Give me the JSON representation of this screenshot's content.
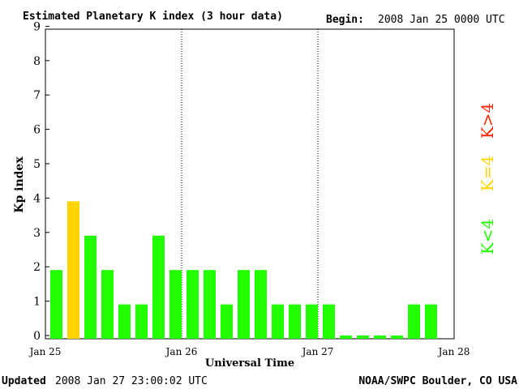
{
  "header": {
    "title": "Estimated Planetary K index (3 hour data)",
    "begin_label": "Begin:",
    "begin_value": "2008 Jan 25 0000 UTC"
  },
  "footer": {
    "updated_label": "Updated",
    "updated_value": "2008 Jan 27 23:00:02 UTC",
    "source": "NOAA/SWPC Boulder, CO USA"
  },
  "legend": {
    "low": "K<4",
    "mid": "K=4",
    "high": "K>4"
  },
  "colors": {
    "low": "#22ff00",
    "mid": "#ffd400",
    "high": "#ff2200",
    "axis": "#000000"
  },
  "chart_data": {
    "type": "bar",
    "title": "Estimated Planetary K index (3 hour data)",
    "xlabel": "Universal Time",
    "ylabel": "Kp index",
    "ylim": [
      0,
      9
    ],
    "yticks": [
      0,
      1,
      2,
      3,
      4,
      5,
      6,
      7,
      8,
      9
    ],
    "xticks": [
      "Jan 25",
      "Jan 26",
      "Jan 27",
      "Jan 28"
    ],
    "interval_hours": 3,
    "values": [
      2,
      4,
      3,
      2,
      1,
      1,
      3,
      2,
      2,
      2,
      1,
      2,
      2,
      1,
      1,
      1,
      1,
      0,
      0,
      0,
      0,
      1,
      1
    ],
    "grid": "dotted vertical lines at day boundaries"
  }
}
